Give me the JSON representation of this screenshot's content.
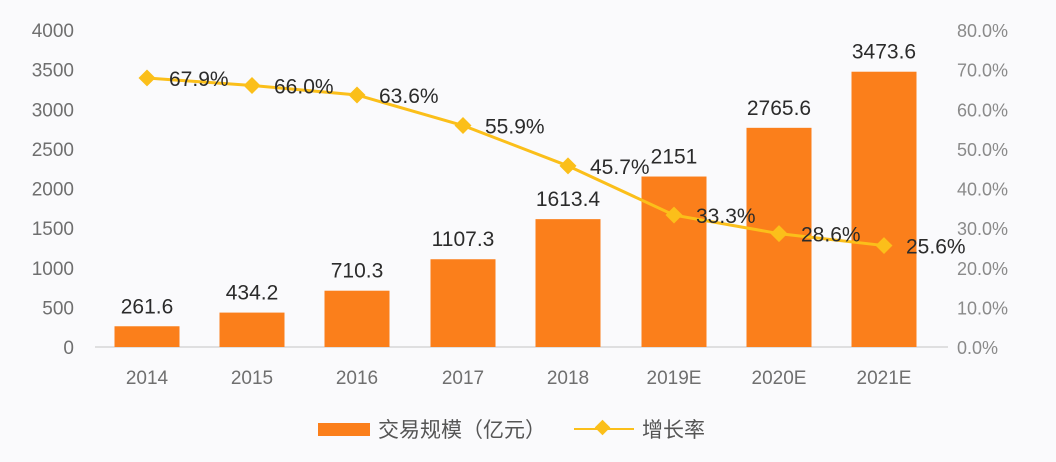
{
  "chart_data": {
    "type": "bar+line",
    "categories": [
      "2014",
      "2015",
      "2016",
      "2017",
      "2018",
      "2019E",
      "2020E",
      "2021E"
    ],
    "series": [
      {
        "name": "交易规模（亿元）",
        "type": "bar",
        "axis": "left",
        "color": "#fb7f1b",
        "values": [
          261.6,
          434.2,
          710.3,
          1107.3,
          1613.4,
          2151,
          2765.6,
          3473.6
        ],
        "labels": [
          "261.6",
          "434.2",
          "710.3",
          "1107.3",
          "1613.4",
          "2151",
          "2765.6",
          "3473.6"
        ]
      },
      {
        "name": "增长率",
        "type": "line",
        "axis": "right",
        "color": "#fbbf1a",
        "values": [
          67.9,
          66.0,
          63.6,
          55.9,
          45.7,
          33.3,
          28.6,
          25.6
        ],
        "labels": [
          "67.9%",
          "66.0%",
          "63.6%",
          "55.9%",
          "45.7%",
          "33.3%",
          "28.6%",
          "25.6%"
        ]
      }
    ],
    "left_axis": {
      "ylim": [
        0,
        4000
      ],
      "ticks": [
        "0",
        "500",
        "1000",
        "1500",
        "2000",
        "2500",
        "3000",
        "3500",
        "4000"
      ]
    },
    "right_axis": {
      "ylim": [
        0,
        80
      ],
      "ticks": [
        "0.0%",
        "10.0%",
        "20.0%",
        "30.0%",
        "40.0%",
        "50.0%",
        "60.0%",
        "70.0%",
        "80.0%"
      ]
    },
    "title": "",
    "xlabel": "",
    "ylabel": "",
    "grid": false,
    "legend_position": "bottom"
  },
  "legend": {
    "bar_label": "交易规模（亿元）",
    "line_label": "增长率"
  }
}
